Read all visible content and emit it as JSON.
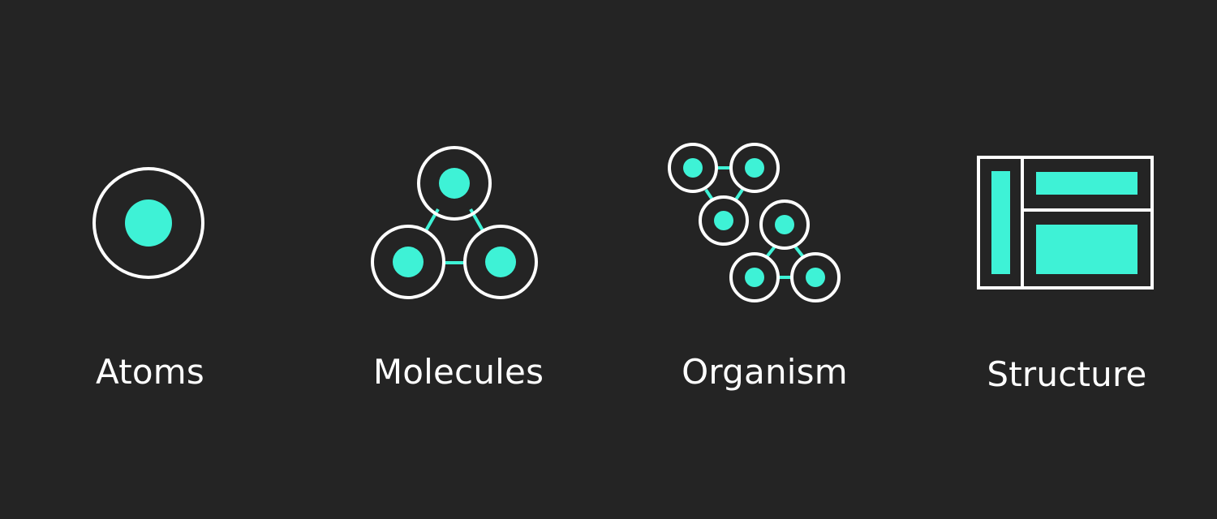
{
  "theme": {
    "background": "#242424",
    "outline": "#ffffff",
    "accent": "#3ef2d6"
  },
  "stages": [
    {
      "id": "atoms",
      "label": "Atoms",
      "icon": "atom-icon"
    },
    {
      "id": "molecules",
      "label": "Molecules",
      "icon": "molecule-icon"
    },
    {
      "id": "organism",
      "label": "Organism",
      "icon": "organism-icon"
    },
    {
      "id": "structure",
      "label": "Structure",
      "icon": "layout-structure-icon"
    }
  ]
}
